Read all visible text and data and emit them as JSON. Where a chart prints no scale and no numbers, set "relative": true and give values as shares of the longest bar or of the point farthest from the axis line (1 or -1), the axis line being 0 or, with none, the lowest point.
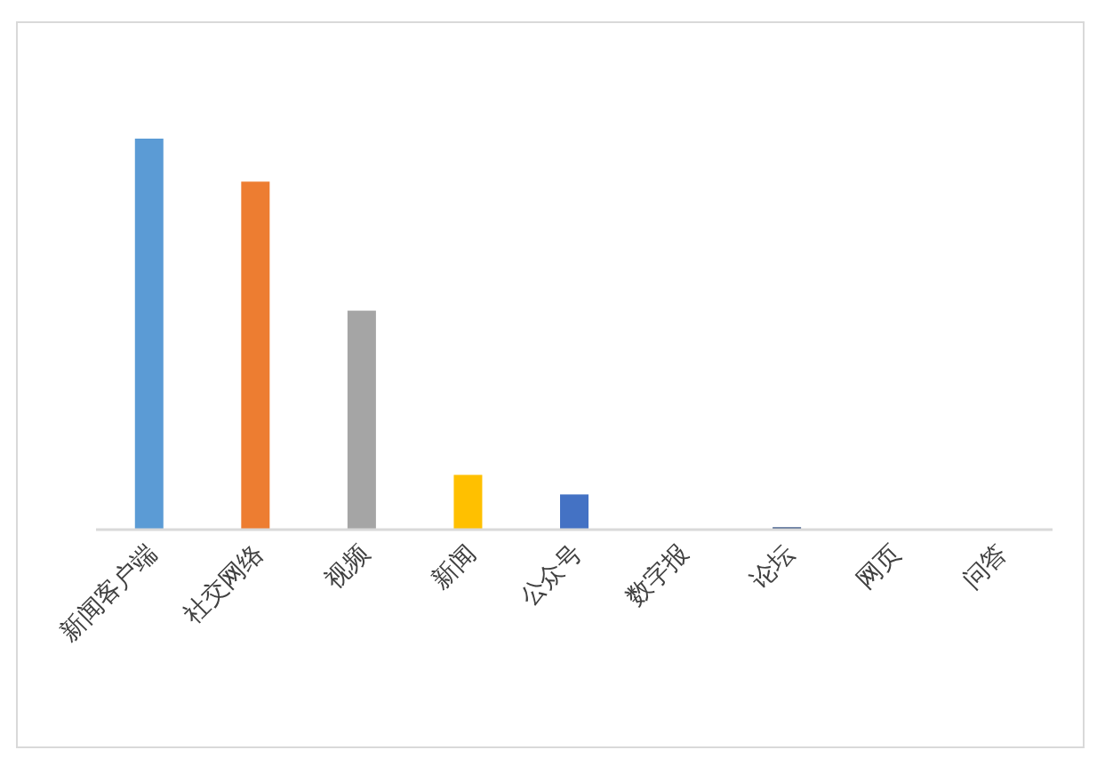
{
  "chart_data": {
    "type": "bar",
    "relative": true,
    "categories": [
      "新闻客户端",
      "社交网络",
      "视频",
      "新闻",
      "公众号",
      "数字报",
      "论坛",
      "网页",
      "问答"
    ],
    "values": [
      1,
      0.89,
      0.56,
      0.14,
      0.09,
      0,
      0.006,
      0,
      0
    ],
    "colors": [
      "#5b9bd5",
      "#ed7d31",
      "#a5a5a5",
      "#ffc000",
      "#4472c4",
      "#70ad47",
      "#264478",
      "#9e480e",
      "#636363"
    ],
    "legend": false
  }
}
